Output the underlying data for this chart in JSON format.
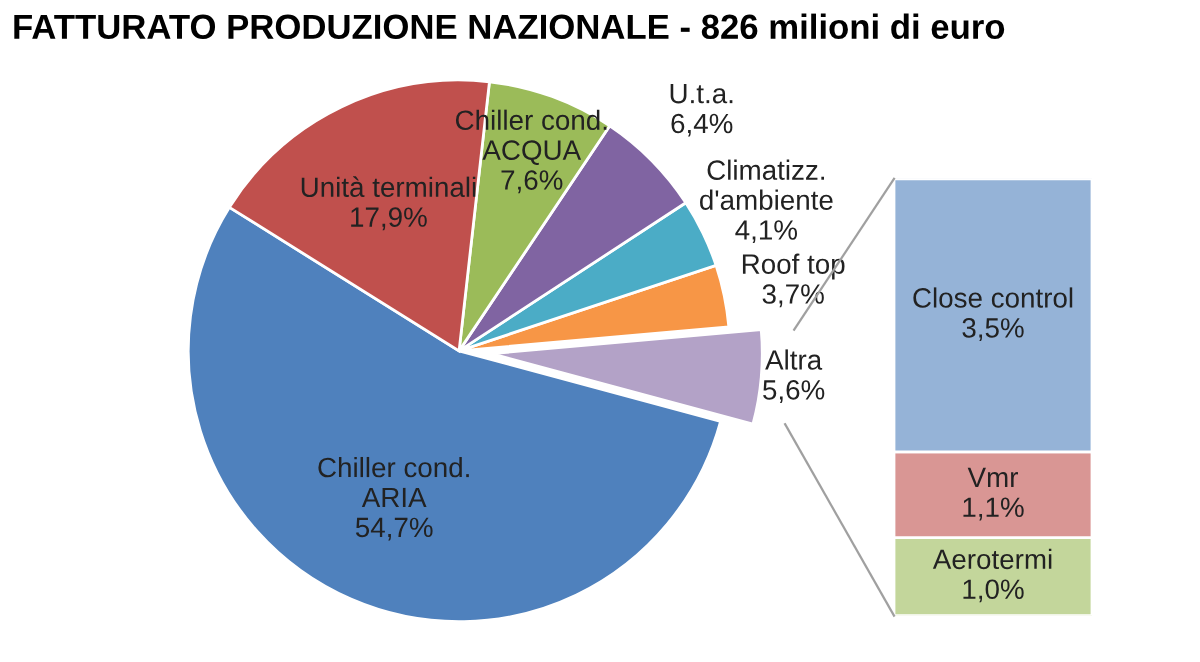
{
  "chart_data": [
    {
      "type": "pie",
      "title": "FATTURATO PRODUZIONE NAZIONALE - 826 milioni di euro",
      "categories": [
        "Chiller cond.\nARIA",
        "Altra",
        "Roof top",
        "Climatizz.\nd'ambiente",
        "U.t.a.",
        "Chiller cond.\nACQUA",
        "Unità terminali"
      ],
      "values": [
        54.7,
        5.6,
        3.7,
        4.1,
        6.4,
        7.6,
        17.9
      ],
      "value_labels": [
        "54,7%",
        "5,6%",
        "3,7%",
        "4,1%",
        "6,4%",
        "7,6%",
        "17,9%"
      ],
      "colors": [
        "#4f81bd",
        "#b3a2c7",
        "#f79646",
        "#4bacc6",
        "#8064a2",
        "#9bbb59",
        "#c0504d"
      ]
    },
    {
      "type": "bar",
      "stacked": true,
      "categories": [
        null
      ],
      "series": [
        {
          "name": "Aerotermi",
          "color": "#c3d69b",
          "values": [
            1.0
          ],
          "value_labels": [
            "1,0%"
          ]
        },
        {
          "name": "Vmr",
          "color": "#d99694",
          "values": [
            1.1
          ],
          "value_labels": [
            "1,1%"
          ]
        },
        {
          "name": "Close control",
          "color": "#95b3d7",
          "values": [
            3.5
          ],
          "value_labels": [
            "3,5%"
          ]
        }
      ]
    }
  ]
}
